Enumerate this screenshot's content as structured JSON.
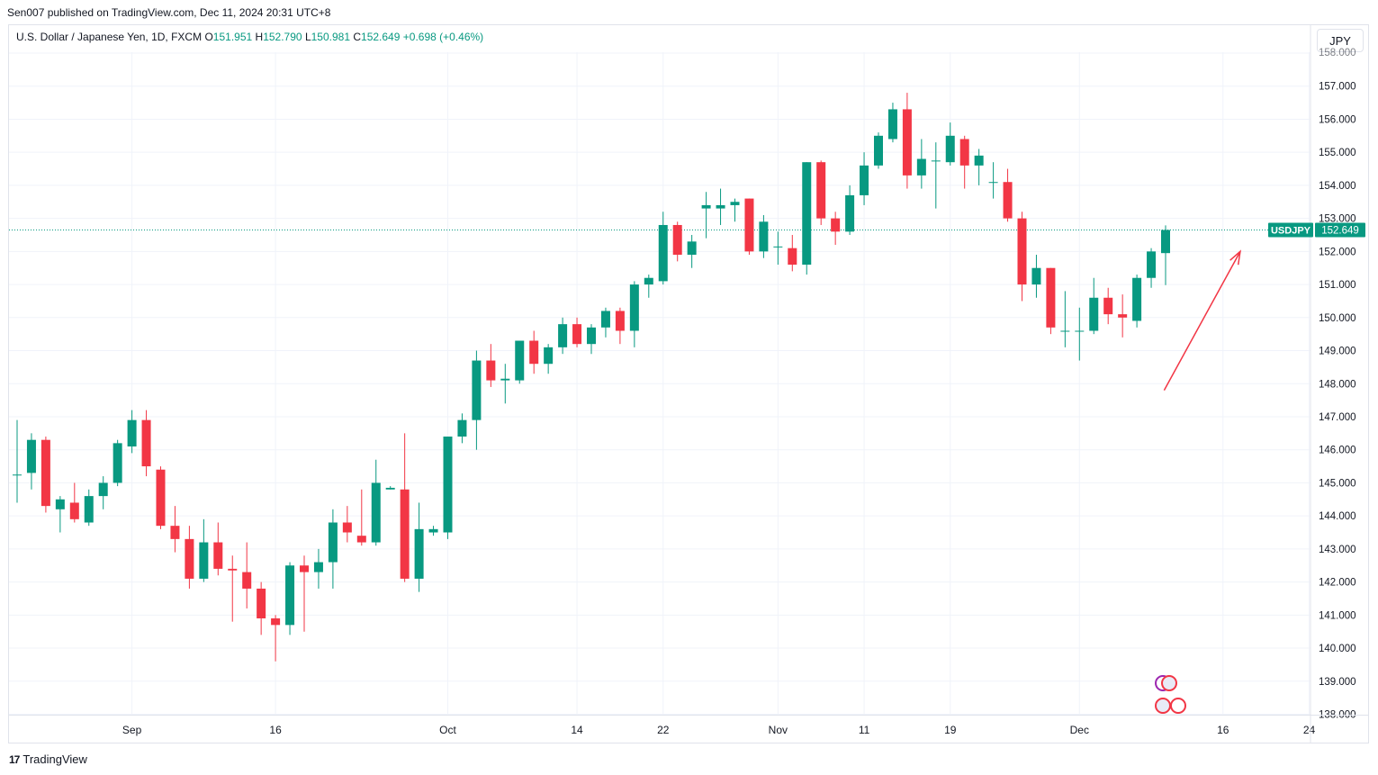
{
  "header": {
    "published": "Sen007 published on TradingView.com, Dec 11, 2024 20:31 UTC+8"
  },
  "legend": {
    "symbol": "U.S. Dollar / Japanese Yen, 1D, FXCM",
    "o_label": "O",
    "o_value": "151.951",
    "h_label": "H",
    "h_value": "152.790",
    "l_label": "L",
    "l_value": "150.981",
    "c_label": "C",
    "c_value": "152.649",
    "change": "+0.698 (+0.46%)"
  },
  "currency_button": "JPY",
  "footer": {
    "brand": "TradingView",
    "logo": "17"
  },
  "colors": {
    "up": "#089981",
    "down": "#f23645",
    "last_price": "#089981",
    "arrow": "#f23645",
    "grid": "#f0f3fa"
  },
  "chart_data": {
    "type": "candlestick",
    "symbol": "USDJPY",
    "last_price": 152.649,
    "price_label": "USDJPY",
    "price_value": "152.649",
    "ylim": [
      137.85,
      158.05
    ],
    "y_ticks": [
      "138.000",
      "139.000",
      "140.000",
      "141.000",
      "142.000",
      "143.000",
      "144.000",
      "145.000",
      "146.000",
      "147.000",
      "148.000",
      "149.000",
      "150.000",
      "151.000",
      "152.000",
      "153.000",
      "154.000",
      "155.000",
      "156.000",
      "157.000",
      "158.000"
    ],
    "x_ticks": [
      {
        "label": "Sep",
        "bar": 8
      },
      {
        "label": "16",
        "bar": 18
      },
      {
        "label": "Oct",
        "bar": 30
      },
      {
        "label": "14",
        "bar": 39
      },
      {
        "label": "22",
        "bar": 45
      },
      {
        "label": "Nov",
        "bar": 53
      },
      {
        "label": "11",
        "bar": 59
      },
      {
        "label": "19",
        "bar": 65
      },
      {
        "label": "Dec",
        "bar": 74
      },
      {
        "label": "16",
        "bar": 84
      },
      {
        "label": "24",
        "bar": 90
      }
    ],
    "annotation": {
      "type": "arrow",
      "from": {
        "bar": 79.9,
        "price": 147.8
      },
      "to": {
        "bar": 85.2,
        "price": 152.0
      }
    },
    "candles": [
      [
        145.25,
        146.9,
        144.4,
        145.25
      ],
      [
        145.3,
        146.5,
        144.8,
        146.3
      ],
      [
        146.3,
        146.4,
        144.1,
        144.3
      ],
      [
        144.2,
        144.6,
        143.5,
        144.5
      ],
      [
        144.4,
        145.0,
        143.8,
        143.9
      ],
      [
        143.8,
        144.8,
        143.7,
        144.6
      ],
      [
        144.6,
        145.2,
        144.2,
        145.0
      ],
      [
        145.0,
        146.3,
        144.9,
        146.2
      ],
      [
        146.1,
        147.2,
        145.9,
        146.9
      ],
      [
        146.9,
        147.2,
        145.2,
        145.5
      ],
      [
        145.4,
        145.5,
        143.6,
        143.7
      ],
      [
        143.7,
        144.3,
        142.9,
        143.3
      ],
      [
        143.3,
        143.7,
        141.8,
        142.1
      ],
      [
        142.1,
        143.9,
        142.0,
        143.2
      ],
      [
        143.2,
        143.8,
        142.2,
        142.4
      ],
      [
        142.4,
        142.8,
        140.8,
        142.35
      ],
      [
        142.3,
        143.2,
        141.2,
        141.8
      ],
      [
        141.8,
        142.0,
        140.4,
        140.9
      ],
      [
        140.9,
        141.0,
        139.6,
        140.7
      ],
      [
        140.7,
        142.6,
        140.4,
        142.5
      ],
      [
        142.5,
        142.8,
        140.5,
        142.3
      ],
      [
        142.3,
        143.0,
        141.8,
        142.6
      ],
      [
        142.6,
        144.2,
        141.8,
        143.8
      ],
      [
        143.8,
        144.3,
        143.2,
        143.5
      ],
      [
        143.4,
        144.8,
        143.1,
        143.2
      ],
      [
        143.2,
        145.7,
        143.1,
        145.0
      ],
      [
        144.8,
        144.9,
        144.8,
        144.85
      ],
      [
        144.8,
        146.5,
        142.0,
        142.1
      ],
      [
        142.1,
        144.4,
        141.7,
        143.6
      ],
      [
        143.5,
        143.7,
        143.4,
        143.6
      ],
      [
        143.5,
        146.4,
        143.3,
        146.4
      ],
      [
        146.4,
        147.1,
        146.2,
        146.9
      ],
      [
        146.9,
        149.0,
        146.0,
        148.7
      ],
      [
        148.7,
        149.2,
        147.9,
        148.1
      ],
      [
        148.1,
        148.6,
        147.4,
        148.15
      ],
      [
        148.1,
        149.3,
        148.0,
        149.3
      ],
      [
        149.3,
        149.6,
        148.3,
        148.6
      ],
      [
        148.6,
        149.2,
        148.3,
        149.1
      ],
      [
        149.1,
        150.0,
        148.9,
        149.8
      ],
      [
        149.8,
        150.0,
        149.1,
        149.2
      ],
      [
        149.2,
        149.8,
        148.9,
        149.7
      ],
      [
        149.7,
        150.3,
        149.4,
        150.2
      ],
      [
        150.2,
        150.3,
        149.2,
        149.6
      ],
      [
        149.6,
        151.1,
        149.1,
        151.0
      ],
      [
        151.0,
        151.3,
        150.6,
        151.2
      ],
      [
        151.1,
        153.2,
        151.0,
        152.8
      ],
      [
        152.8,
        152.9,
        151.7,
        151.9
      ],
      [
        151.9,
        152.5,
        151.5,
        152.3
      ],
      [
        153.3,
        153.8,
        152.4,
        153.4
      ],
      [
        153.3,
        153.9,
        152.8,
        153.4
      ],
      [
        153.4,
        153.6,
        152.9,
        153.5
      ],
      [
        153.6,
        153.6,
        151.9,
        152.0
      ],
      [
        152.0,
        153.1,
        151.8,
        152.9
      ],
      [
        152.15,
        152.6,
        151.6,
        152.15
      ],
      [
        152.1,
        152.5,
        151.4,
        151.6
      ],
      [
        151.6,
        154.7,
        151.3,
        154.7
      ],
      [
        154.7,
        154.75,
        152.8,
        153.0
      ],
      [
        153.0,
        153.2,
        152.2,
        152.6
      ],
      [
        152.6,
        154.0,
        152.5,
        153.7
      ],
      [
        153.7,
        155.0,
        153.4,
        154.6
      ],
      [
        154.6,
        155.6,
        154.5,
        155.5
      ],
      [
        155.4,
        156.5,
        155.3,
        156.3
      ],
      [
        156.3,
        156.8,
        153.9,
        154.3
      ],
      [
        154.3,
        155.4,
        153.9,
        154.8
      ],
      [
        154.75,
        155.3,
        153.3,
        154.75
      ],
      [
        154.7,
        155.9,
        154.6,
        155.5
      ],
      [
        155.4,
        155.5,
        153.9,
        154.6
      ],
      [
        154.6,
        155.1,
        154.0,
        154.9
      ],
      [
        154.1,
        154.7,
        153.6,
        154.1
      ],
      [
        154.1,
        154.5,
        152.9,
        153.0
      ],
      [
        153.0,
        153.2,
        150.5,
        151.0
      ],
      [
        151.0,
        151.9,
        150.6,
        151.5
      ],
      [
        151.5,
        151.5,
        149.5,
        149.7
      ],
      [
        149.6,
        150.8,
        149.1,
        149.6
      ],
      [
        149.6,
        150.3,
        148.7,
        149.6
      ],
      [
        149.6,
        151.2,
        149.5,
        150.6
      ],
      [
        150.6,
        150.9,
        149.8,
        150.1
      ],
      [
        150.1,
        150.7,
        149.4,
        150.0
      ],
      [
        149.9,
        151.3,
        149.7,
        151.2
      ],
      [
        151.2,
        152.1,
        150.9,
        152.0
      ],
      [
        151.95,
        152.79,
        150.98,
        152.65
      ]
    ]
  }
}
